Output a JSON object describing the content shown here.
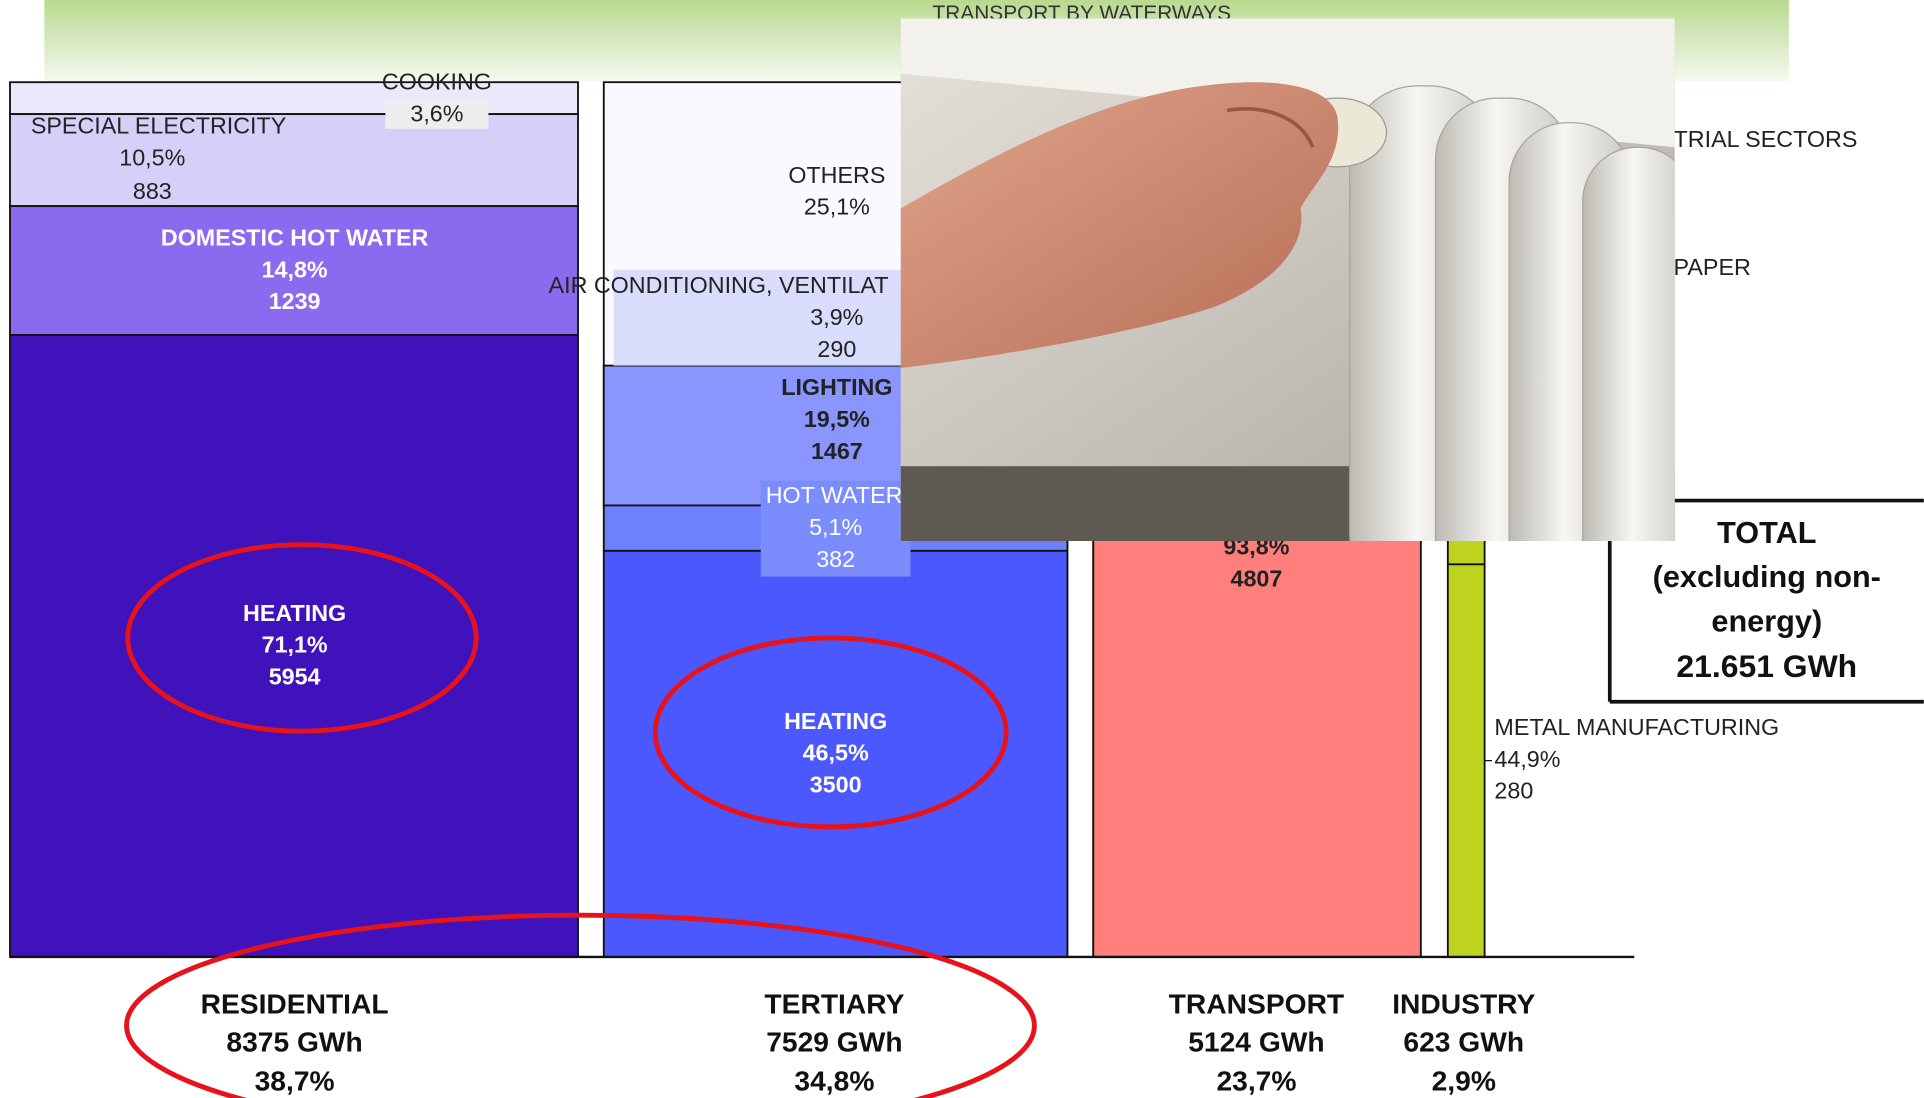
{
  "banner": {
    "cut_off_text": "TRANSPORT BY WATERWAYS"
  },
  "residential": {
    "segments": [
      {
        "name": "COOKING",
        "share": "3,6%"
      },
      {
        "name": "SPECIAL ELECTRICITY",
        "share": "10,5%",
        "value": "883"
      },
      {
        "name": "DOMESTIC HOT WATER",
        "share": "14,8%",
        "value": "1239"
      },
      {
        "name": "HEATING",
        "share": "71,1%",
        "value": "5954"
      }
    ],
    "label": "RESIDENTIAL",
    "total": "8375 GWh",
    "share": "38,7%"
  },
  "tertiary": {
    "segments": [
      {
        "name": "OTHERS",
        "share": "25,1%"
      },
      {
        "name": "AIR CONDITIONING, VENTILAT",
        "share": "3,9%",
        "value": "290"
      },
      {
        "name": "LIGHTING",
        "share": "19,5%",
        "value": "1467"
      },
      {
        "name": "HOT WATER",
        "share": "5,1%",
        "value": "382"
      },
      {
        "name": "HEATING",
        "share": "46,5%",
        "value": "3500"
      }
    ],
    "label": "TERTIARY",
    "total": "7529 GWh",
    "share": "34,8%"
  },
  "transport": {
    "segments": [
      {
        "share": "93,8%",
        "value": "4807"
      }
    ],
    "label": "TRANSPORT",
    "total": "5124 GWh",
    "share": "23,7%"
  },
  "industry": {
    "segments": [
      {
        "name": "TRIAL SECTORS"
      },
      {
        "name": "PAPER"
      },
      {
        "name": "METAL MANUFACTURING",
        "share": "44,9%",
        "value": "280"
      }
    ],
    "label": "INDUSTRY",
    "total": "623 GWh",
    "share": "2,9%"
  },
  "total_box": {
    "lines": [
      "TOTAL",
      "(excluding non-",
      "energy)",
      "21.651 GWh"
    ]
  }
}
